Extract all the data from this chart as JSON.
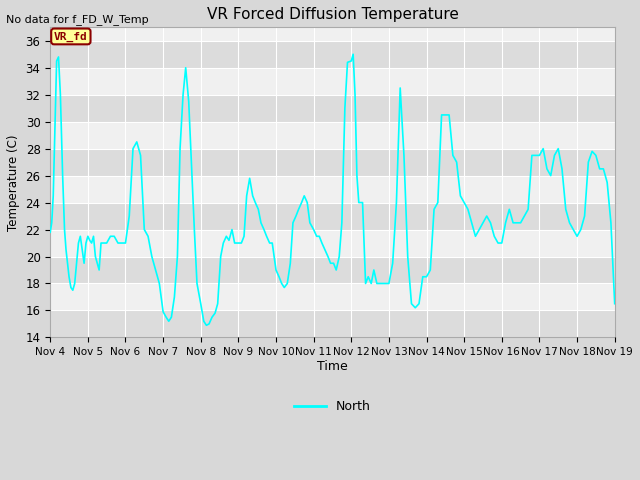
{
  "title": "VR Forced Diffusion Temperature",
  "top_left_text": "No data for f_FD_W_Temp",
  "ylabel": "Temperature (C)",
  "xlabel": "Time",
  "ylim": [
    14,
    37
  ],
  "yticks": [
    14,
    16,
    18,
    20,
    22,
    24,
    26,
    28,
    30,
    32,
    34,
    36
  ],
  "xtick_labels": [
    "Nov 4",
    "Nov 5",
    "Nov 6",
    "Nov 7",
    "Nov 8",
    "Nov 9",
    "Nov 10",
    "Nov 11",
    "Nov 12",
    "Nov 13",
    "Nov 14",
    "Nov 15",
    "Nov 16",
    "Nov 17",
    "Nov 18",
    "Nov 19"
  ],
  "line_color": "#00FFFF",
  "fig_bg_color": "#D8D8D8",
  "plot_bg_light": "#F0F0F0",
  "plot_bg_dark": "#DCDCDC",
  "legend_label": "North",
  "legend_box_text": "VR_fd",
  "legend_box_bg": "#FFFF99",
  "legend_box_edge": "#8B0000",
  "legend_box_text_color": "#8B0000",
  "grid_color": "#FFFFFF",
  "x_values": [
    4.0,
    4.04,
    4.08,
    4.12,
    4.17,
    4.22,
    4.27,
    4.33,
    4.38,
    4.42,
    4.46,
    4.5,
    4.55,
    4.6,
    4.65,
    4.7,
    4.75,
    4.8,
    4.85,
    4.9,
    4.95,
    5.0,
    5.05,
    5.1,
    5.15,
    5.2,
    5.25,
    5.3,
    5.35,
    5.4,
    5.5,
    5.6,
    5.7,
    5.8,
    5.9,
    6.0,
    6.1,
    6.2,
    6.3,
    6.4,
    6.5,
    6.6,
    6.7,
    6.8,
    6.9,
    7.0,
    7.08,
    7.15,
    7.22,
    7.3,
    7.38,
    7.45,
    7.53,
    7.6,
    7.68,
    7.75,
    7.83,
    7.9,
    8.0,
    8.08,
    8.15,
    8.22,
    8.3,
    8.38,
    8.45,
    8.53,
    8.6,
    8.68,
    8.75,
    8.83,
    8.9,
    9.0,
    9.08,
    9.15,
    9.22,
    9.3,
    9.38,
    9.45,
    9.53,
    9.6,
    9.68,
    9.75,
    9.83,
    9.9,
    10.0,
    10.08,
    10.15,
    10.22,
    10.3,
    10.38,
    10.45,
    10.53,
    10.6,
    10.68,
    10.75,
    10.83,
    10.9,
    11.0,
    11.08,
    11.15,
    11.22,
    11.3,
    11.38,
    11.45,
    11.53,
    11.6,
    11.68,
    11.75,
    11.83,
    11.9,
    12.0,
    12.05,
    12.1,
    12.15,
    12.2,
    12.25,
    12.3,
    12.38,
    12.45,
    12.53,
    12.6,
    12.68,
    12.75,
    12.83,
    12.9,
    13.0,
    13.1,
    13.2,
    13.3,
    13.4,
    13.5,
    13.6,
    13.7,
    13.8,
    13.9,
    14.0,
    14.1,
    14.2,
    14.3,
    14.4,
    14.5,
    14.6,
    14.7,
    14.8,
    14.9,
    15.0,
    15.1,
    15.2,
    15.3,
    15.4,
    15.5,
    15.6,
    15.7,
    15.8,
    15.9,
    16.0,
    16.1,
    16.2,
    16.3,
    16.4,
    16.5,
    16.6,
    16.7,
    16.8,
    16.9,
    17.0,
    17.1,
    17.2,
    17.3,
    17.4,
    17.5,
    17.6,
    17.7,
    17.8,
    17.9,
    18.0,
    18.1,
    18.2,
    18.3,
    18.4,
    18.5,
    18.6,
    18.7,
    18.8,
    18.9,
    19.0
  ],
  "y_values": [
    21.8,
    22.5,
    24.5,
    29.0,
    34.5,
    34.8,
    32.0,
    26.0,
    22.0,
    20.5,
    19.5,
    18.5,
    17.7,
    17.5,
    18.0,
    19.5,
    21.0,
    21.5,
    20.5,
    19.5,
    21.0,
    21.5,
    21.2,
    21.0,
    21.5,
    20.0,
    19.5,
    19.0,
    21.0,
    21.0,
    21.0,
    21.5,
    21.5,
    21.0,
    21.0,
    21.0,
    23.0,
    28.0,
    28.5,
    27.5,
    22.0,
    21.5,
    20.0,
    19.0,
    18.0,
    15.9,
    15.5,
    15.2,
    15.5,
    17.0,
    20.0,
    28.0,
    32.0,
    34.0,
    31.5,
    27.0,
    22.0,
    18.0,
    16.5,
    15.2,
    14.9,
    15.0,
    15.5,
    15.8,
    16.5,
    20.0,
    21.0,
    21.5,
    21.2,
    22.0,
    21.0,
    21.0,
    21.0,
    21.5,
    24.5,
    25.8,
    24.5,
    24.0,
    23.5,
    22.5,
    22.0,
    21.5,
    21.0,
    21.0,
    19.0,
    18.5,
    18.0,
    17.7,
    18.0,
    19.5,
    22.5,
    23.0,
    23.5,
    24.0,
    24.5,
    24.0,
    22.5,
    22.0,
    21.5,
    21.5,
    21.0,
    20.5,
    20.0,
    19.5,
    19.5,
    19.0,
    20.0,
    22.5,
    31.0,
    34.4,
    34.5,
    35.0,
    32.0,
    26.0,
    24.0,
    24.0,
    24.0,
    18.0,
    18.5,
    18.0,
    19.0,
    18.0,
    18.0,
    18.0,
    18.0,
    18.0,
    19.5,
    24.0,
    32.5,
    27.5,
    20.0,
    16.5,
    16.2,
    16.5,
    18.5,
    18.5,
    19.0,
    23.5,
    24.0,
    30.5,
    30.5,
    30.5,
    27.5,
    27.0,
    24.5,
    24.0,
    23.5,
    22.5,
    21.5,
    22.0,
    22.5,
    23.0,
    22.5,
    21.5,
    21.0,
    21.0,
    22.5,
    23.5,
    22.5,
    22.5,
    22.5,
    23.0,
    23.5,
    27.5,
    27.5,
    27.5,
    28.0,
    26.5,
    26.0,
    27.5,
    28.0,
    26.5,
    23.5,
    22.5,
    22.0,
    21.5,
    22.0,
    23.0,
    27.0,
    27.8,
    27.5,
    26.5,
    26.5,
    25.5,
    22.5,
    16.5
  ]
}
